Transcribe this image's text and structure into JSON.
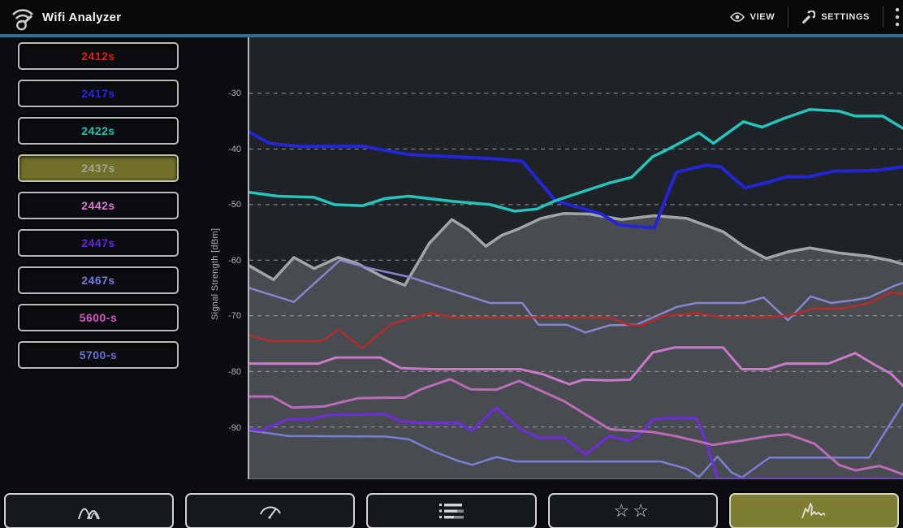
{
  "app_title": "Wifi Analyzer",
  "actionbar": {
    "view": {
      "label": "VIEW",
      "icon": "eye-icon"
    },
    "settings": {
      "label": "SETTINGS",
      "icon": "wrench-icon"
    },
    "overflow_icon": "overflow-menu-icon",
    "accent_underline_color": "#2f7092"
  },
  "sidebar": {
    "networks": [
      {
        "label": "2412s",
        "color": "#e11d1d",
        "selected": false
      },
      {
        "label": "2417s",
        "color": "#2423ea",
        "selected": false
      },
      {
        "label": "2422s",
        "color": "#1ac3b3",
        "selected": false
      },
      {
        "label": "2437s",
        "color": "#a5a393",
        "selected": true,
        "selected_bg": "#70702a"
      },
      {
        "label": "2442s",
        "color": "#d279cf",
        "selected": false
      },
      {
        "label": "2447s",
        "color": "#6426e2",
        "selected": false
      },
      {
        "label": "2467s",
        "color": "#767add",
        "selected": false
      },
      {
        "label": "5600-s",
        "color": "#d855c5",
        "selected": false
      },
      {
        "label": "5700-s",
        "color": "#6a70d8",
        "selected": false
      }
    ]
  },
  "chart": {
    "ylabel": "Signal Strength [dBm]",
    "chart_data": {
      "type": "line",
      "title": "",
      "xlabel": "",
      "ylabel": "Signal Strength [dBm]",
      "x_axis_note": "time samples, no x tick labels shown; x stored as pixel offset 0-807 across plot",
      "ylim": [
        -99,
        -21
      ],
      "yticks": [
        -30,
        -40,
        -50,
        -60,
        -70,
        -80,
        -90
      ],
      "grid": "horizontal dashed",
      "legend_position": "left sidebar buttons act as legend",
      "plot_bg": "#1f2226",
      "grid_color": "#97999c",
      "series": [
        {
          "name": "2437s",
          "color": "#a2a4a6",
          "width": 3.5,
          "fill": true,
          "fill_color": "rgba(170,172,175,0.30)",
          "points": [
            [
              0,
              -61
            ],
            [
              30,
              -63.5
            ],
            [
              55,
              -59.5
            ],
            [
              80,
              -61.5
            ],
            [
              110,
              -59.5
            ],
            [
              132,
              -60.5
            ],
            [
              165,
              -63
            ],
            [
              192,
              -64.5
            ],
            [
              222,
              -57
            ],
            [
              250,
              -52.7
            ],
            [
              270,
              -54.5
            ],
            [
              292,
              -57.5
            ],
            [
              312,
              -55.5
            ],
            [
              332,
              -54.4
            ],
            [
              360,
              -52.5
            ],
            [
              388,
              -51.6
            ],
            [
              420,
              -51.7
            ],
            [
              460,
              -52.7
            ],
            [
              500,
              -52
            ],
            [
              540,
              -52.5
            ],
            [
              585,
              -54.9
            ],
            [
              610,
              -57.5
            ],
            [
              638,
              -59.7
            ],
            [
              665,
              -58.5
            ],
            [
              692,
              -57.8
            ],
            [
              728,
              -58.7
            ],
            [
              765,
              -59.3
            ],
            [
              790,
              -60
            ],
            [
              807,
              -60.7
            ]
          ]
        },
        {
          "name": "5700-s",
          "color": "#7a7fd6",
          "width": 2.5,
          "fill": false,
          "points": [
            [
              0,
              -90.6
            ],
            [
              48,
              -91.6
            ],
            [
              168,
              -91.7
            ],
            [
              197,
              -92.2
            ],
            [
              228,
              -94.4
            ],
            [
              258,
              -96.1
            ],
            [
              275,
              -96.8
            ],
            [
              305,
              -95.4
            ],
            [
              330,
              -96.2
            ],
            [
              508,
              -96.2
            ],
            [
              540,
              -97.5
            ],
            [
              555,
              -99
            ],
            [
              578,
              -95.3
            ],
            [
              595,
              -98.1
            ],
            [
              608,
              -99.1
            ],
            [
              642,
              -95.5
            ],
            [
              765,
              -95.5
            ],
            [
              807,
              -85.8
            ]
          ]
        },
        {
          "name": "2447s",
          "color": "#6c2fd2",
          "width": 3.5,
          "fill": false,
          "points": [
            [
              0,
              -90.3
            ],
            [
              15,
              -90.6
            ],
            [
              48,
              -88.6
            ],
            [
              75,
              -88.6
            ],
            [
              98,
              -87.8
            ],
            [
              168,
              -87.7
            ],
            [
              187,
              -89
            ],
            [
              222,
              -89.3
            ],
            [
              258,
              -89.3
            ],
            [
              275,
              -90.6
            ],
            [
              305,
              -86.5
            ],
            [
              335,
              -90.4
            ],
            [
              357,
              -91.9
            ],
            [
              388,
              -91.9
            ],
            [
              415,
              -94.9
            ],
            [
              445,
              -91.6
            ],
            [
              468,
              -92.5
            ],
            [
              482,
              -91.3
            ],
            [
              498,
              -88.7
            ],
            [
              512,
              -88.4
            ],
            [
              552,
              -88.4
            ],
            [
              565,
              -93
            ],
            [
              578,
              -99.3
            ],
            [
              807,
              -99.3
            ]
          ]
        },
        {
          "name": "5600-s",
          "color": "#bb6cb8",
          "width": 3,
          "fill": false,
          "points": [
            [
              0,
              -84.5
            ],
            [
              28,
              -84.5
            ],
            [
              53,
              -86.5
            ],
            [
              92,
              -86.3
            ],
            [
              135,
              -84.8
            ],
            [
              192,
              -84.7
            ],
            [
              212,
              -83.2
            ],
            [
              248,
              -81.4
            ],
            [
              273,
              -83.2
            ],
            [
              305,
              -83.3
            ],
            [
              333,
              -81.7
            ],
            [
              388,
              -85.3
            ],
            [
              445,
              -90.4
            ],
            [
              498,
              -90.9
            ],
            [
              525,
              -91.6
            ],
            [
              552,
              -92.5
            ],
            [
              572,
              -93.2
            ],
            [
              605,
              -92.5
            ],
            [
              642,
              -91.6
            ],
            [
              665,
              -91.3
            ],
            [
              698,
              -93
            ],
            [
              728,
              -96.8
            ],
            [
              748,
              -97.8
            ],
            [
              778,
              -97
            ],
            [
              792,
              -97.7
            ],
            [
              807,
              -98.5
            ]
          ]
        },
        {
          "name": "2442s",
          "color": "#c97ac9",
          "width": 3,
          "fill": false,
          "points": [
            [
              0,
              -78.6
            ],
            [
              85,
              -78.6
            ],
            [
              107,
              -77.5
            ],
            [
              162,
              -77.5
            ],
            [
              187,
              -79.4
            ],
            [
              225,
              -79.6
            ],
            [
              335,
              -79.6
            ],
            [
              362,
              -80.5
            ],
            [
              395,
              -82.3
            ],
            [
              412,
              -81.5
            ],
            [
              445,
              -81.6
            ],
            [
              470,
              -81.5
            ],
            [
              498,
              -76.6
            ],
            [
              525,
              -75.7
            ],
            [
              585,
              -75.7
            ],
            [
              608,
              -79.6
            ],
            [
              640,
              -79.6
            ],
            [
              662,
              -78.6
            ],
            [
              715,
              -78.6
            ],
            [
              748,
              -76.7
            ],
            [
              772,
              -78.8
            ],
            [
              792,
              -80.4
            ],
            [
              807,
              -82.6
            ]
          ]
        },
        {
          "name": "2467s",
          "color": "#8487cf",
          "width": 2.5,
          "fill": false,
          "points": [
            [
              0,
              -65
            ],
            [
              55,
              -67.5
            ],
            [
              112,
              -60
            ],
            [
              150,
              -61.5
            ],
            [
              197,
              -63
            ],
            [
              250,
              -65.5
            ],
            [
              297,
              -67.7
            ],
            [
              337,
              -67.7
            ],
            [
              357,
              -71.6
            ],
            [
              392,
              -71.6
            ],
            [
              415,
              -73
            ],
            [
              445,
              -71.7
            ],
            [
              478,
              -71.6
            ],
            [
              498,
              -70.3
            ],
            [
              528,
              -68.4
            ],
            [
              552,
              -67.7
            ],
            [
              610,
              -67.7
            ],
            [
              635,
              -66.7
            ],
            [
              665,
              -70.8
            ],
            [
              693,
              -66.5
            ],
            [
              718,
              -67.7
            ],
            [
              745,
              -67.2
            ],
            [
              765,
              -66.7
            ],
            [
              798,
              -64.5
            ],
            [
              807,
              -64.1
            ]
          ]
        },
        {
          "name": "2412s",
          "color": "#b62b2b",
          "width": 2.5,
          "fill": false,
          "points": [
            [
              0,
              -73.5
            ],
            [
              25,
              -74.5
            ],
            [
              60,
              -74.5
            ],
            [
              90,
              -74.5
            ],
            [
              110,
              -72.5
            ],
            [
              140,
              -75.8
            ],
            [
              175,
              -71.5
            ],
            [
              197,
              -70.5
            ],
            [
              225,
              -69.5
            ],
            [
              252,
              -70.3
            ],
            [
              330,
              -70.3
            ],
            [
              445,
              -70.3
            ],
            [
              470,
              -71.7
            ],
            [
              485,
              -71.7
            ],
            [
              512,
              -70
            ],
            [
              552,
              -69.5
            ],
            [
              585,
              -70.3
            ],
            [
              640,
              -70.2
            ],
            [
              665,
              -70
            ],
            [
              698,
              -68.7
            ],
            [
              732,
              -68.7
            ],
            [
              765,
              -67.7
            ],
            [
              792,
              -65.8
            ],
            [
              807,
              -66.1
            ]
          ]
        },
        {
          "name": "2417s",
          "color": "#2326d8",
          "width": 4,
          "fill": false,
          "points": [
            [
              0,
              -37
            ],
            [
              25,
              -39
            ],
            [
              60,
              -39.5
            ],
            [
              140,
              -39.5
            ],
            [
              170,
              -40.3
            ],
            [
              197,
              -41
            ],
            [
              265,
              -41.5
            ],
            [
              297,
              -41.7
            ],
            [
              337,
              -42.2
            ],
            [
              378,
              -49.3
            ],
            [
              435,
              -51.7
            ],
            [
              457,
              -53.7
            ],
            [
              500,
              -54.2
            ],
            [
              527,
              -44.2
            ],
            [
              547,
              -43.5
            ],
            [
              565,
              -42.9
            ],
            [
              582,
              -43.2
            ],
            [
              595,
              -44.9
            ],
            [
              612,
              -47
            ],
            [
              640,
              -46
            ],
            [
              663,
              -45
            ],
            [
              690,
              -45
            ],
            [
              722,
              -44
            ],
            [
              760,
              -43.9
            ],
            [
              777,
              -43.8
            ],
            [
              807,
              -43.2
            ]
          ]
        },
        {
          "name": "2422s",
          "color": "#25c5bc",
          "width": 3.5,
          "fill": false,
          "points": [
            [
              0,
              -47.8
            ],
            [
              35,
              -48.5
            ],
            [
              80,
              -48.7
            ],
            [
              105,
              -50
            ],
            [
              140,
              -50.2
            ],
            [
              168,
              -48.9
            ],
            [
              197,
              -48.5
            ],
            [
              250,
              -49.4
            ],
            [
              297,
              -50
            ],
            [
              328,
              -51.2
            ],
            [
              355,
              -50.8
            ],
            [
              378,
              -49.3
            ],
            [
              405,
              -48
            ],
            [
              445,
              -46.1
            ],
            [
              472,
              -45.1
            ],
            [
              498,
              -41.4
            ],
            [
              515,
              -40.2
            ],
            [
              528,
              -39.2
            ],
            [
              555,
              -37.1
            ],
            [
              573,
              -39
            ],
            [
              610,
              -35.1
            ],
            [
              633,
              -36.1
            ],
            [
              660,
              -34.5
            ],
            [
              692,
              -32.9
            ],
            [
              728,
              -33.2
            ],
            [
              748,
              -34.1
            ],
            [
              782,
              -34.1
            ],
            [
              807,
              -36.3
            ]
          ]
        }
      ]
    }
  },
  "toolbar": {
    "buttons": [
      {
        "name": "channel-graph",
        "icon": "channel-graph-icon",
        "selected": false
      },
      {
        "name": "signal-meter",
        "icon": "signal-meter-icon",
        "selected": false
      },
      {
        "name": "ap-list",
        "icon": "ap-list-icon",
        "selected": false
      },
      {
        "name": "star-rating",
        "icon": "star-rating-icon",
        "selected": false,
        "glyph": "☆☆"
      },
      {
        "name": "time-graph",
        "icon": "time-graph-icon",
        "selected": true,
        "selected_bg": "#7e7e33"
      }
    ]
  }
}
